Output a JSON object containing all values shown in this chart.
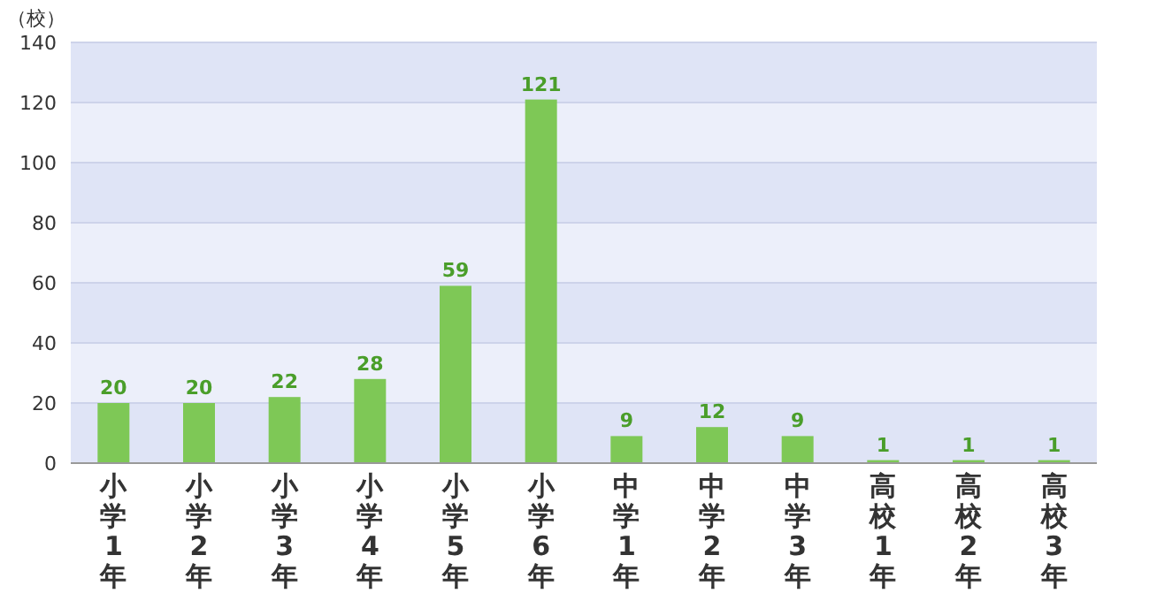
{
  "chart_data": {
    "type": "bar",
    "ylabel": "（校）",
    "categories": [
      "小学1年",
      "小学2年",
      "小学3年",
      "小学4年",
      "小学5年",
      "小学6年",
      "中学1年",
      "中学2年",
      "中学3年",
      "高校1年",
      "高校2年",
      "高校3年"
    ],
    "values": [
      20,
      20,
      22,
      28,
      59,
      121,
      9,
      12,
      9,
      1,
      1,
      1
    ],
    "color": "#7ec856",
    "ylim": [
      0,
      140
    ],
    "yticks": [
      0,
      20,
      40,
      60,
      80,
      100,
      120,
      140
    ],
    "grid": "y",
    "data_labels": true
  }
}
